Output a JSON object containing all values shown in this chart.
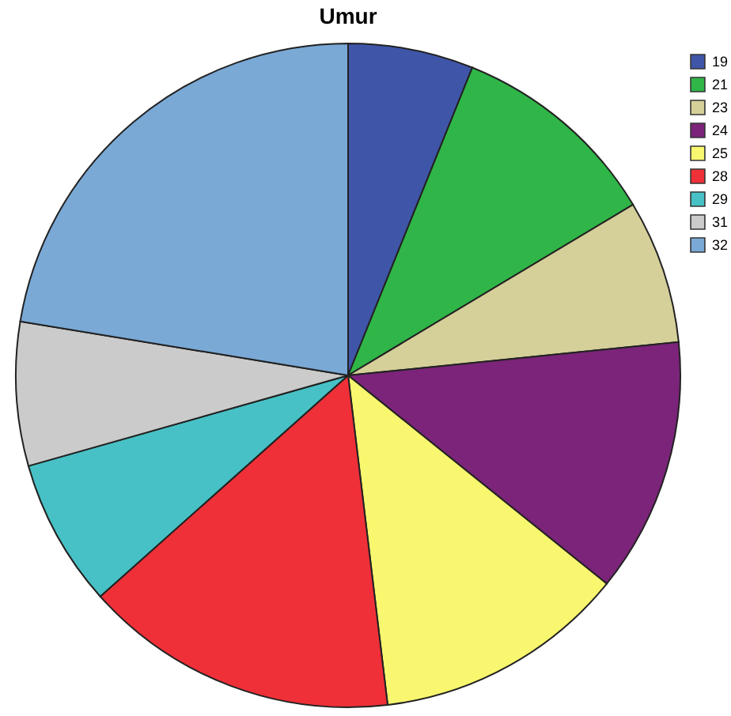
{
  "chart_data": {
    "type": "pie",
    "title": "Umur",
    "categories": [
      "19",
      "21",
      "23",
      "24",
      "25",
      "28",
      "29",
      "31",
      "32"
    ],
    "values": [
      6.1,
      10.3,
      7.0,
      12.4,
      12.3,
      15.3,
      7.2,
      7.0,
      22.4
    ],
    "colors": [
      "#3f55a8",
      "#30b648",
      "#d5cf99",
      "#7b2479",
      "#f9f76f",
      "#ef3038",
      "#47c1c5",
      "#cbcbcb",
      "#7aa9d6"
    ],
    "legend": "top right"
  }
}
